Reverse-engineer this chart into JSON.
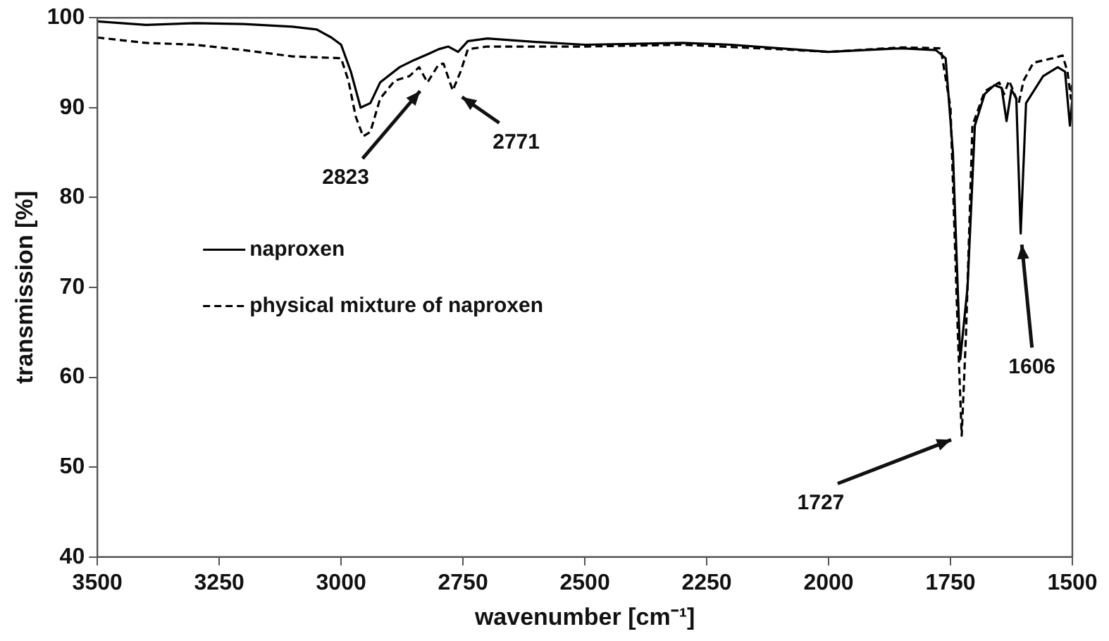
{
  "chart_data": {
    "type": "line",
    "xlabel": "wavenumber [cm⁻¹]",
    "ylabel": "transmission [%]",
    "xlim": [
      3500,
      1500
    ],
    "xticks": [
      3500,
      3250,
      3000,
      2750,
      2500,
      2250,
      2000,
      1750,
      1500
    ],
    "ylim": [
      40,
      100
    ],
    "yticks": [
      40,
      50,
      60,
      70,
      80,
      90,
      100
    ],
    "grid": false,
    "legend": "left",
    "marker": "none",
    "annotations": [
      {
        "text": "2823",
        "x": 2823,
        "y": 92.8
      },
      {
        "text": "2771",
        "x": 2771,
        "y": 91.9
      },
      {
        "text": "1727",
        "x": 1727,
        "y": 53.5
      },
      {
        "text": "1606",
        "x": 1606,
        "y": 76
      }
    ],
    "series": [
      {
        "name": "naproxen",
        "color": "#000000",
        "line_style": "solid",
        "x": [
          3500,
          3400,
          3300,
          3200,
          3100,
          3050,
          3020,
          3000,
          2980,
          2960,
          2940,
          2920,
          2880,
          2850,
          2820,
          2800,
          2780,
          2760,
          2740,
          2700,
          2600,
          2500,
          2300,
          2200,
          2100,
          2000,
          1850,
          1780,
          1760,
          1745,
          1730,
          1715,
          1700,
          1680,
          1660,
          1645,
          1635,
          1625,
          1615,
          1606,
          1595,
          1560,
          1530,
          1515,
          1505,
          1500
        ],
        "values": [
          99.6,
          99.2,
          99.4,
          99.3,
          99.0,
          98.7,
          97.8,
          97.0,
          94,
          90,
          90.5,
          92.8,
          94.5,
          95.3,
          96.0,
          96.5,
          96.8,
          96.2,
          97.4,
          97.7,
          97.3,
          97.0,
          97.2,
          97.0,
          96.6,
          96.2,
          96.6,
          96.4,
          95.5,
          85,
          62,
          70,
          88,
          91.5,
          92.5,
          92.2,
          88.5,
          92,
          91,
          76,
          90.5,
          93.5,
          94.5,
          94,
          88,
          91
        ]
      },
      {
        "name": "physical mixture of naproxen",
        "color": "#000000",
        "line_style": "dashed",
        "x": [
          3500,
          3400,
          3300,
          3200,
          3100,
          3000,
          2985,
          2970,
          2955,
          2940,
          2920,
          2890,
          2860,
          2840,
          2823,
          2800,
          2790,
          2771,
          2755,
          2740,
          2700,
          2500,
          2300,
          2100,
          2000,
          1850,
          1770,
          1750,
          1735,
          1727,
          1718,
          1705,
          1680,
          1650,
          1640,
          1630,
          1622,
          1615,
          1610,
          1600,
          1580,
          1540,
          1520,
          1510,
          1503,
          1500
        ],
        "values": [
          97.8,
          97.2,
          97.0,
          96.4,
          95.7,
          95.5,
          93,
          89,
          86.8,
          87.3,
          91,
          93,
          93.5,
          94.5,
          92.8,
          94.8,
          94.9,
          91.9,
          94,
          96.5,
          96.8,
          96.8,
          97.0,
          96.5,
          96.2,
          96.7,
          96.6,
          90,
          65,
          53.5,
          65,
          88,
          91.8,
          92.8,
          91.5,
          93,
          92,
          91,
          90.5,
          93,
          95,
          95.5,
          95.8,
          94,
          91,
          93
        ]
      }
    ]
  }
}
